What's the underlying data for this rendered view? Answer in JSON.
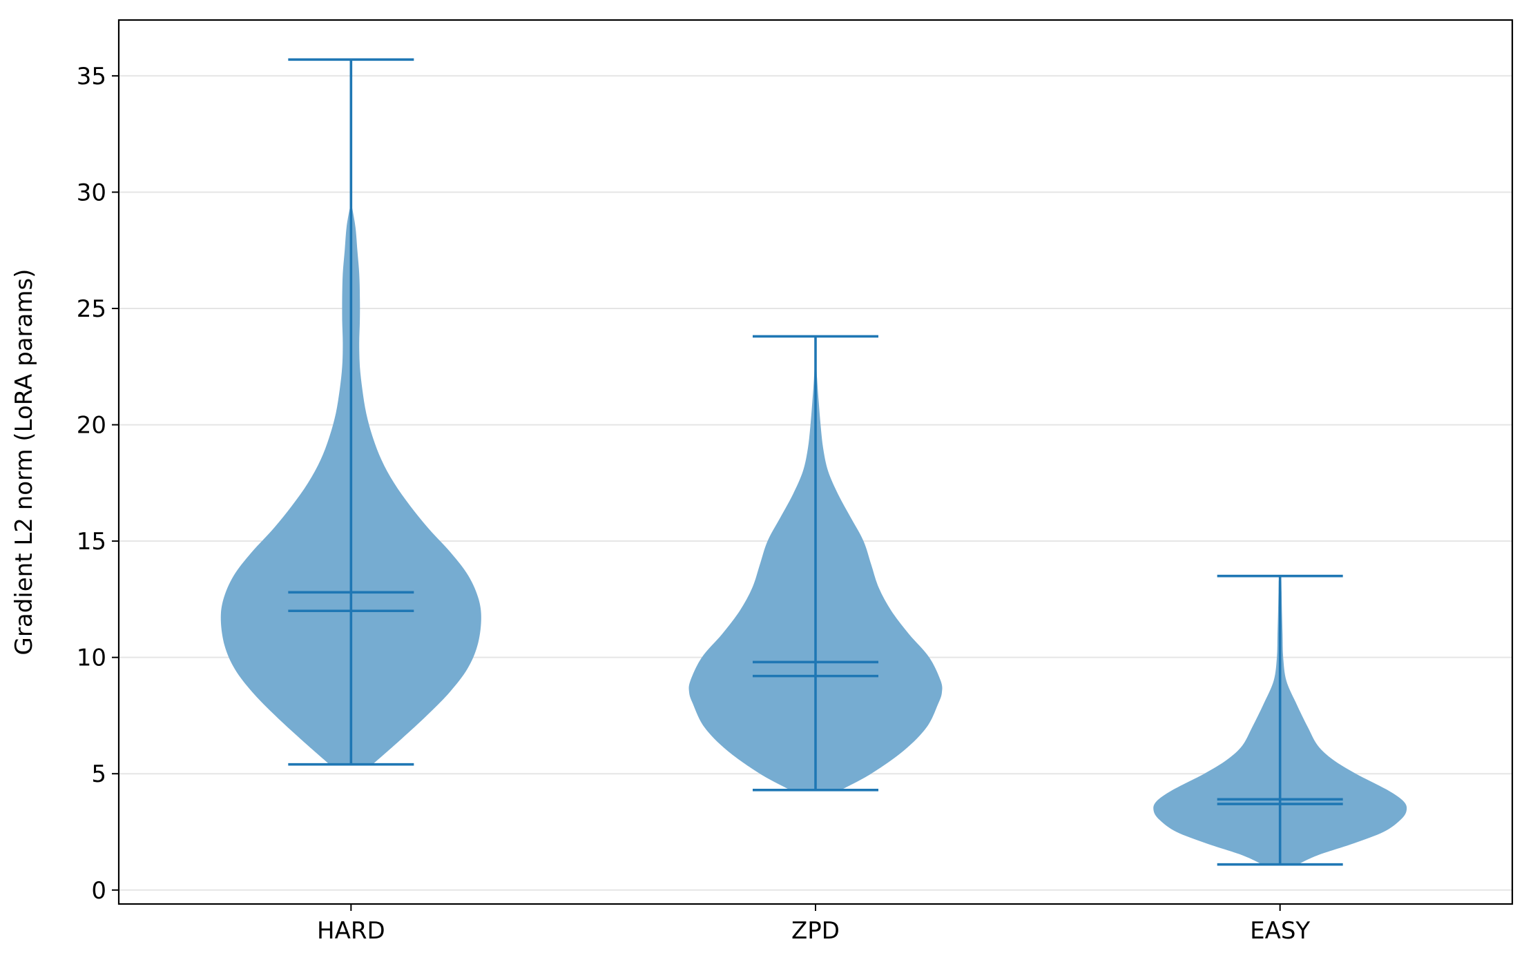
{
  "chart_data": {
    "type": "violin",
    "title": "",
    "xlabel": "",
    "ylabel": "Gradient L2 norm (LoRA params)",
    "ylim": [
      -0.6,
      37.4
    ],
    "grid": "horizontal",
    "yticks": [
      0,
      5,
      10,
      15,
      20,
      25,
      30,
      35
    ],
    "categories": [
      "HARD",
      "ZPD",
      "EASY"
    ],
    "colors": {
      "body": "#76acd1",
      "line": "#1f77b4",
      "grid": "#e5e5e5",
      "axis": "#000000"
    },
    "series": [
      {
        "category": "HARD",
        "min": 5.4,
        "max": 35.7,
        "mean": 12.8,
        "median": 12.0,
        "density": [
          [
            5.4,
            0.17
          ],
          [
            6.5,
            0.4
          ],
          [
            7.5,
            0.6
          ],
          [
            8.5,
            0.78
          ],
          [
            9.5,
            0.92
          ],
          [
            10.5,
            1.0
          ],
          [
            11.6,
            1.03
          ],
          [
            12.5,
            1.01
          ],
          [
            13.5,
            0.93
          ],
          [
            14.5,
            0.79
          ],
          [
            15.5,
            0.62
          ],
          [
            16.5,
            0.47
          ],
          [
            17.5,
            0.34
          ],
          [
            18.5,
            0.24
          ],
          [
            19.5,
            0.17
          ],
          [
            20.5,
            0.12
          ],
          [
            21.5,
            0.09
          ],
          [
            22.5,
            0.07
          ],
          [
            23.5,
            0.065
          ],
          [
            24.5,
            0.07
          ],
          [
            25.5,
            0.07
          ],
          [
            26.5,
            0.065
          ],
          [
            27.5,
            0.05
          ],
          [
            28.5,
            0.035
          ],
          [
            29.3,
            0.01
          ]
        ]
      },
      {
        "category": "ZPD",
        "min": 4.3,
        "max": 23.8,
        "mean": 9.8,
        "median": 9.2,
        "density": [
          [
            4.3,
            0.2
          ],
          [
            5.0,
            0.44
          ],
          [
            6.0,
            0.7
          ],
          [
            7.0,
            0.88
          ],
          [
            8.0,
            0.97
          ],
          [
            8.5,
            1.0
          ],
          [
            9.0,
            0.99
          ],
          [
            10.0,
            0.9
          ],
          [
            11.0,
            0.74
          ],
          [
            12.0,
            0.6
          ],
          [
            13.0,
            0.5
          ],
          [
            14.0,
            0.44
          ],
          [
            15.0,
            0.38
          ],
          [
            16.0,
            0.28
          ],
          [
            17.0,
            0.18
          ],
          [
            18.0,
            0.1
          ],
          [
            19.0,
            0.06
          ],
          [
            20.0,
            0.04
          ],
          [
            21.0,
            0.025
          ],
          [
            22.0,
            0.012
          ],
          [
            22.8,
            0.004
          ]
        ]
      },
      {
        "category": "EASY",
        "min": 1.1,
        "max": 13.5,
        "mean": 3.9,
        "median": 3.7,
        "density": [
          [
            1.1,
            0.14
          ],
          [
            1.5,
            0.3
          ],
          [
            2.0,
            0.58
          ],
          [
            2.5,
            0.82
          ],
          [
            3.0,
            0.95
          ],
          [
            3.4,
            1.0
          ],
          [
            3.8,
            0.98
          ],
          [
            4.3,
            0.85
          ],
          [
            5.0,
            0.6
          ],
          [
            5.6,
            0.42
          ],
          [
            6.2,
            0.3
          ],
          [
            7.0,
            0.22
          ],
          [
            8.0,
            0.13
          ],
          [
            9.0,
            0.05
          ],
          [
            10.0,
            0.025
          ],
          [
            11.0,
            0.02
          ],
          [
            12.0,
            0.015
          ],
          [
            12.8,
            0.012
          ],
          [
            13.3,
            0.01
          ]
        ]
      }
    ]
  }
}
